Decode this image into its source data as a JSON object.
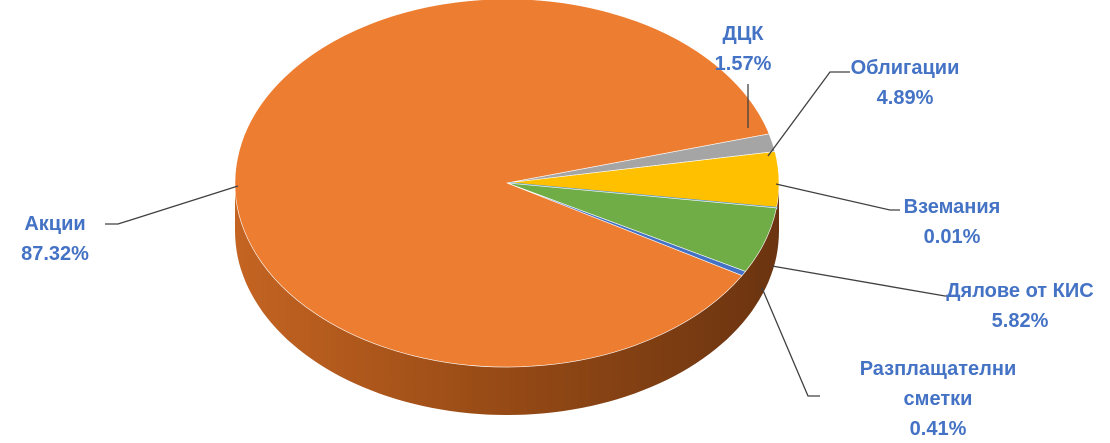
{
  "chart_data": {
    "type": "pie",
    "title": "",
    "label_color": "#4472C4",
    "slices": [
      {
        "label": "ДЦК",
        "value": 1.57,
        "value_text": "1.57%",
        "color": "#A5A5A5"
      },
      {
        "label": "Облигации",
        "value": 4.89,
        "value_text": "4.89%",
        "color": "#FFC000"
      },
      {
        "label": "Вземания",
        "value": 0.01,
        "value_text": "0.01%",
        "color": "#5B9BD5"
      },
      {
        "label": "Дялове от КИС",
        "value": 5.82,
        "value_text": "5.82%",
        "color": "#70AD47"
      },
      {
        "label": "Разплащателни сметки",
        "value": 0.41,
        "value_text": "0.41%",
        "color": "#4472C4"
      },
      {
        "label": "Акции",
        "value": 87.32,
        "value_text": "87.32%",
        "color": "#ED7D31"
      }
    ]
  }
}
